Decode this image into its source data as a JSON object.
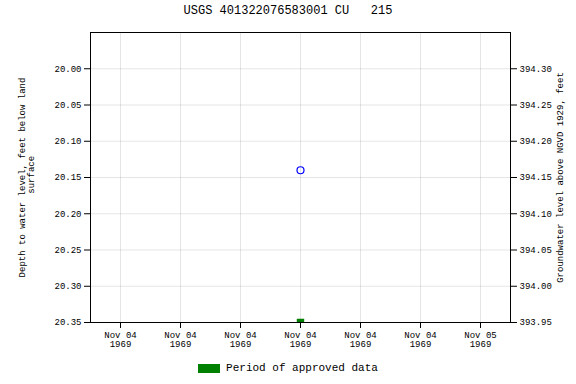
{
  "chart_data": {
    "type": "scatter",
    "title": "USGS 401322076583001 CU   215",
    "ylabel": "Depth to water level, feet below land\n surface",
    "y2label": "Groundwater level above NGVD 1929, feet",
    "categories": [
      "Nov 04\n1969",
      "Nov 04\n1969",
      "Nov 04\n1969",
      "Nov 04\n1969",
      "Nov 04\n1969",
      "Nov 04\n1969",
      "Nov 05\n1969"
    ],
    "series": [
      {
        "color": "#0000ff",
        "marker": "circle_open",
        "values": [
          null,
          null,
          null,
          20.14,
          null,
          null,
          null
        ]
      },
      {
        "name": "Period of approved data",
        "color": "#008000",
        "marker": "square",
        "values": [
          null,
          null,
          null,
          20.35,
          null,
          null,
          null
        ]
      }
    ],
    "ylim": [
      20.35,
      19.95
    ],
    "yticks": [
      {
        "value": 20.0,
        "label": "20.00"
      },
      20.05,
      {
        "value": 20.1,
        "label": "20.10"
      },
      20.15,
      {
        "value": 20.2,
        "label": "20.20"
      },
      20.25,
      {
        "value": 20.3,
        "label": "20.30"
      },
      20.35
    ],
    "y2lim": [
      393.95,
      394.35
    ],
    "y2ticks": [
      {
        "value": 394.3,
        "label": "394.30"
      },
      394.25,
      {
        "value": 394.2,
        "label": "394.20"
      },
      394.15,
      {
        "value": 394.1,
        "label": "394.10"
      },
      394.05,
      {
        "value": 394.0,
        "label": "394.00"
      },
      393.95
    ],
    "grid": true,
    "legend": "bottom"
  }
}
